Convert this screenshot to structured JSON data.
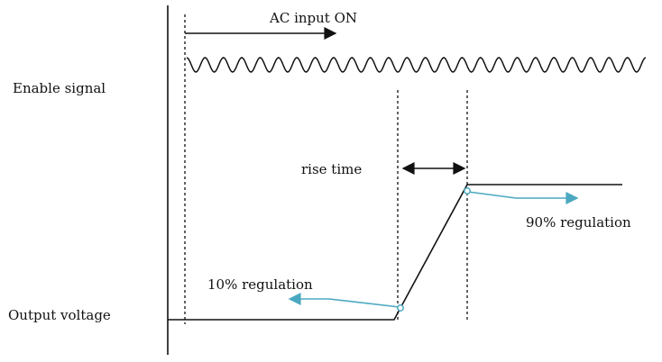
{
  "labels": {
    "enable_signal": "Enable signal",
    "output_voltage": "Output voltage",
    "ac_input_on": "AC input ON",
    "rise_time": "rise time",
    "regulation_10": "10% regulation",
    "regulation_90": "90% regulation"
  },
  "colors": {
    "line": "#111111",
    "accent": "#4aa8c0"
  }
}
